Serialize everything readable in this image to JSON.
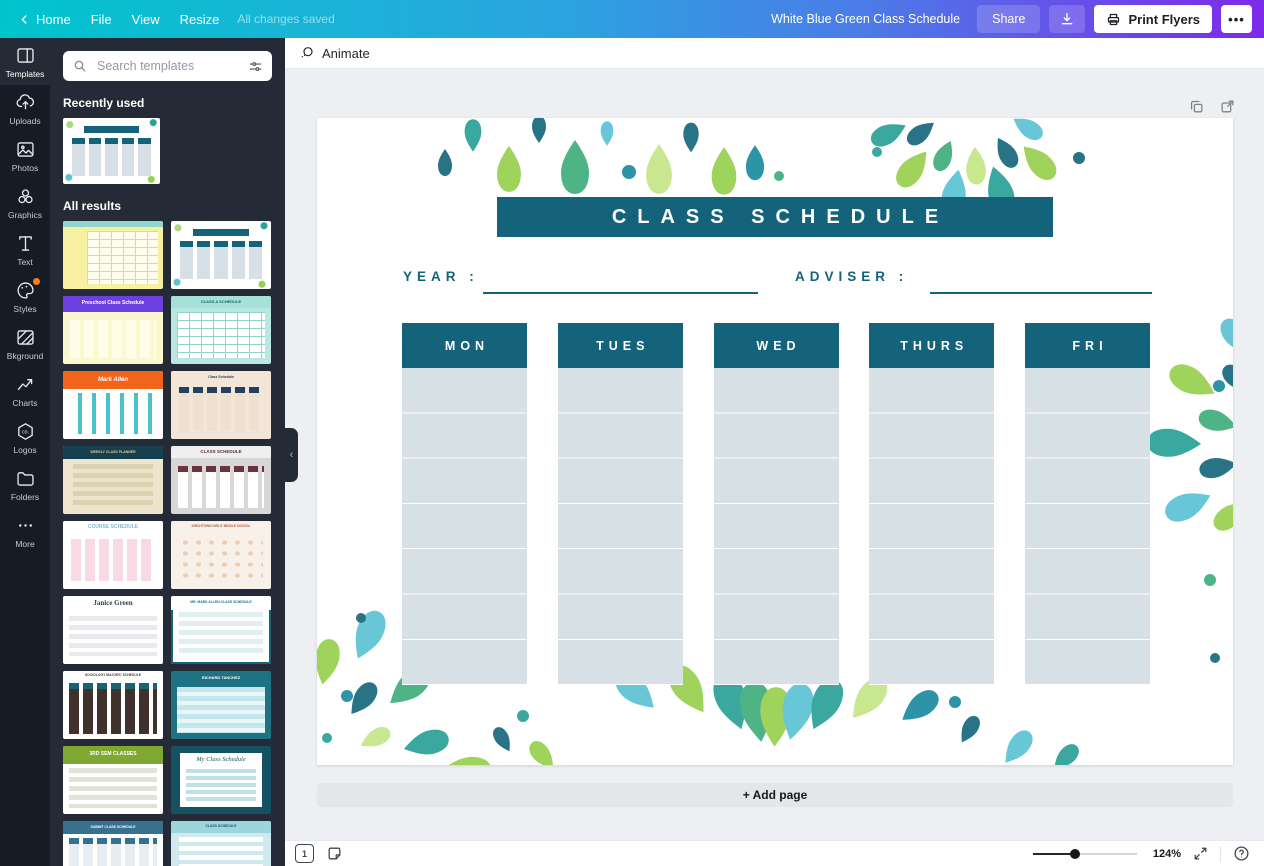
{
  "topbar": {
    "home_label": "Home",
    "menu_items": [
      "File",
      "View",
      "Resize"
    ],
    "autosave_status": "All changes saved",
    "doc_title": "White Blue Green Class Schedule",
    "share_label": "Share",
    "print_label": "Print Flyers"
  },
  "sidebar": {
    "items": [
      {
        "label": "Templates",
        "icon": "templates-icon",
        "active": true
      },
      {
        "label": "Uploads",
        "icon": "uploads-icon"
      },
      {
        "label": "Photos",
        "icon": "photos-icon"
      },
      {
        "label": "Graphics",
        "icon": "graphics-icon"
      },
      {
        "label": "Text",
        "icon": "text-icon"
      },
      {
        "label": "Styles",
        "icon": "styles-icon",
        "badge": true
      },
      {
        "label": "Bkground",
        "icon": "background-icon"
      },
      {
        "label": "Charts",
        "icon": "charts-icon"
      },
      {
        "label": "Logos",
        "icon": "logos-icon"
      },
      {
        "label": "Folders",
        "icon": "folders-icon"
      },
      {
        "label": "More",
        "icon": "more-icon"
      }
    ]
  },
  "templates_panel": {
    "search_placeholder": "Search templates",
    "recently_used_heading": "Recently used",
    "all_results_heading": "All results",
    "recently_used": [
      {
        "name": "white-green-class-schedule",
        "body": {
          "kind": "schedule"
        }
      }
    ],
    "all_results": [
      {
        "name": "yellow-grid-planner",
        "bg": "#f6f0a0",
        "head": {
          "bg": "#8ed7cf",
          "h": 6
        },
        "body": {
          "kind": "grid",
          "base": "#fffdee",
          "c": "#e3da85",
          "inset": [
            10,
            5,
            5,
            24
          ]
        }
      },
      {
        "name": "white-green-class-schedule",
        "body": {
          "kind": "schedule"
        }
      },
      {
        "name": "preschool-class-schedule",
        "bg": "#fbf7cf",
        "head": {
          "bg": "#6d3fe0",
          "text": "Preschool Class Schedule",
          "color": "#ffffff",
          "size": 5,
          "h": 16
        },
        "body": {
          "kind": "cols",
          "base": "#fbf7cf",
          "c": "#fffde8",
          "inset": [
            24,
            7,
            6,
            7
          ]
        }
      },
      {
        "name": "class-a-schedule-teal",
        "bg": "#b9e7e1",
        "head": {
          "bg": "#a5e0d9",
          "text": "CLASS A SCHEDULE",
          "color": "#0f6b60",
          "size": 4,
          "h": 12
        },
        "body": {
          "kind": "grid",
          "base": "#ffffff",
          "c": "#8fd6cc",
          "inset": [
            16,
            6,
            6,
            6
          ]
        }
      },
      {
        "name": "mark-allen-orange",
        "bg": "#ffffff",
        "head": {
          "bg": "#f2641c",
          "text": "Mark Allen",
          "color": "#ffffff",
          "size": 6,
          "script": true,
          "h": 18
        },
        "body": {
          "kind": "cols",
          "base": "#49c2cb",
          "c": "#ffffff",
          "inset": [
            22,
            5,
            5,
            5
          ]
        }
      },
      {
        "name": "tan-class-schedule",
        "bg": "#f3e6d8",
        "head": {
          "bg": "#f3e6d8",
          "text": "Class Schedule",
          "color": "#27415c",
          "size": 3.5,
          "h": 14
        },
        "body": {
          "kind": "cols",
          "base": "#f3e6d8",
          "c": "#efe0cf",
          "caps": "#24405c",
          "inset": [
            16,
            8,
            8,
            8
          ]
        }
      },
      {
        "name": "weekly-class-planner",
        "bg": "#ece4cc",
        "head": {
          "bg": "#16404f",
          "text": "WEEKLY CLASS PLANNER",
          "color": "#e7c793",
          "size": 3.5,
          "h": 13
        },
        "body": {
          "kind": "rows",
          "base": "#ece4cc",
          "c": "#dbd2b2",
          "inset": [
            18,
            10,
            8,
            10
          ]
        }
      },
      {
        "name": "gray-class-schedule",
        "bg": "#d7d7d7",
        "head": {
          "bg": "#efefef",
          "text": "CLASS SCHEDULE",
          "color": "#5a2d35",
          "size": 4.5,
          "h": 12
        },
        "body": {
          "kind": "cols",
          "base": "#d7d7d7",
          "c": "#ffffff",
          "caps": "#6e323e",
          "inset": [
            20,
            7,
            6,
            7
          ]
        }
      },
      {
        "name": "course-schedule-pink",
        "bg": "#ffffff",
        "head": {
          "bg": "#ffffff",
          "text": "COURSE SCHEDULE",
          "color": "#86b8cb",
          "size": 5,
          "h": 14
        },
        "body": {
          "kind": "cols",
          "base": "#ffffff",
          "c": "#f9d9e6",
          "inset": [
            18,
            8,
            8,
            8
          ]
        }
      },
      {
        "name": "kirchtown-girls-middle-school",
        "bg": "#f8f1e9",
        "head": {
          "bg": "#f8f1e9",
          "text": "KIRCHTOWN GIRLS' MIDDLE SCHOOL",
          "color": "#a86643",
          "size": 3.2,
          "h": 12
        },
        "body": {
          "kind": "dots",
          "base": "#f8f1e9",
          "c": "#eecdb2",
          "inset": [
            16,
            8,
            8,
            8
          ]
        }
      },
      {
        "name": "janice-green",
        "bg": "#ffffff",
        "head": {
          "bg": "#ffffff",
          "text": "Janice Green",
          "color": "#323f4e",
          "size": 7,
          "serif": true,
          "h": 16
        },
        "body": {
          "kind": "rows",
          "base": "#ffffff",
          "c": "#e8eaee",
          "inset": [
            20,
            6,
            8,
            6
          ]
        }
      },
      {
        "name": "mr-mark-allen-class-schedule",
        "bg": "#ffffff",
        "border": "#176476",
        "head": {
          "bg": "#ffffff",
          "text": "MR. MARK ALLEN CLASS SCHEDULE",
          "color": "#1a7488",
          "size": 3.4,
          "h": 14
        },
        "body": {
          "kind": "rows",
          "base": "#ffffff",
          "c": "#e1eef2",
          "inset": [
            16,
            8,
            8,
            8
          ]
        }
      },
      {
        "name": "sociology-majors-schedule",
        "bg": "#ffffff",
        "head": {
          "bg": "#ffffff",
          "text": "SOCIOLOGY MAJORS' SCHEDULE",
          "color": "#4c3b35",
          "size": 3.4,
          "h": 10
        },
        "body": {
          "kind": "cols",
          "base": "#ffffff",
          "c": "#41312c",
          "caps": "#176476",
          "inset": [
            12,
            6,
            5,
            6
          ]
        }
      },
      {
        "name": "richard-tanchez",
        "bg": "#1f7282",
        "head": {
          "bg": "#1f7282",
          "text": "RICHARD TANCHEZ",
          "color": "#ffffff",
          "size": 4,
          "h": 14
        },
        "body": {
          "kind": "rows",
          "base": "#eaf7f9",
          "c": "#c2e7ed",
          "inset": [
            16,
            6,
            6,
            6
          ]
        }
      },
      {
        "name": "3rd-sem-classes",
        "bg": "#ffffff",
        "head": {
          "bg": "#7fa832",
          "text": "3RD SEM CLASSES",
          "color": "#ffffff",
          "size": 5,
          "h": 18
        },
        "body": {
          "kind": "rows",
          "base": "#ffffff",
          "c": "#e0e4d8",
          "inset": [
            22,
            6,
            6,
            6
          ]
        }
      },
      {
        "name": "my-class-schedule",
        "bg": "#145163",
        "body": {
          "kind": "card",
          "title": "My Class Schedule"
        }
      },
      {
        "name": "submit-class-schedule",
        "bg": "#ffffff",
        "head": {
          "bg": "#38708f",
          "text": "SUBMIT CLASS SCHEDULE",
          "color": "#ffffff",
          "size": 3.4,
          "h": 13
        },
        "body": {
          "kind": "cols",
          "base": "#ffffff",
          "c": "#e8edf1",
          "caps": "#38708f",
          "inset": [
            17,
            6,
            5,
            6
          ]
        }
      },
      {
        "name": "teal-class-schedule",
        "bg": "#cfe9ee",
        "head": {
          "bg": "#9fd4dd",
          "text": "CLASS SCHEDULE",
          "color": "#14566b",
          "size": 3.4,
          "h": 12
        },
        "body": {
          "kind": "rows",
          "base": "#cfe9ee",
          "c": "#ffffff",
          "inset": [
            16,
            8,
            8,
            8
          ]
        }
      }
    ]
  },
  "canvas": {
    "animate_label": "Animate",
    "add_page_label": "+ Add page"
  },
  "design": {
    "title": "CLASS SCHEDULE",
    "year_label": "YEAR :",
    "adviser_label": "ADVISER :",
    "day_headers": [
      "MON",
      "TUES",
      "WED",
      "THURS",
      "FRI"
    ],
    "colors": {
      "teal": "#15627b",
      "column_bg": "#d6e0e5"
    }
  },
  "statusbar": {
    "page_indicator": "1",
    "zoom_level": "124%"
  }
}
